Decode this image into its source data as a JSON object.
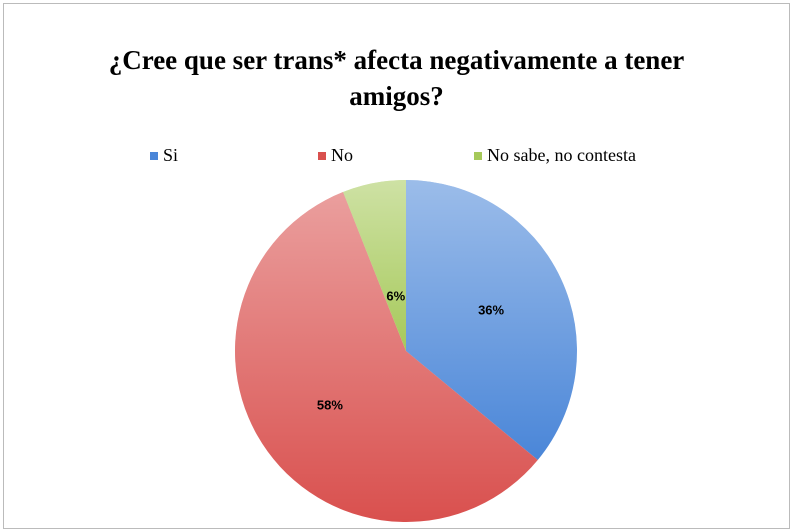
{
  "chart_data": {
    "type": "pie",
    "title": "¿Cree que ser trans* afecta negativamente a tener amigos?",
    "categories": [
      "Si",
      "No",
      "No sabe, no contesta"
    ],
    "values": [
      36,
      58,
      6
    ],
    "value_labels": [
      "36%",
      "58%",
      "6%"
    ],
    "colors": [
      "#4a86d8",
      "#d9504e",
      "#a6c95a"
    ],
    "legend": "top"
  }
}
